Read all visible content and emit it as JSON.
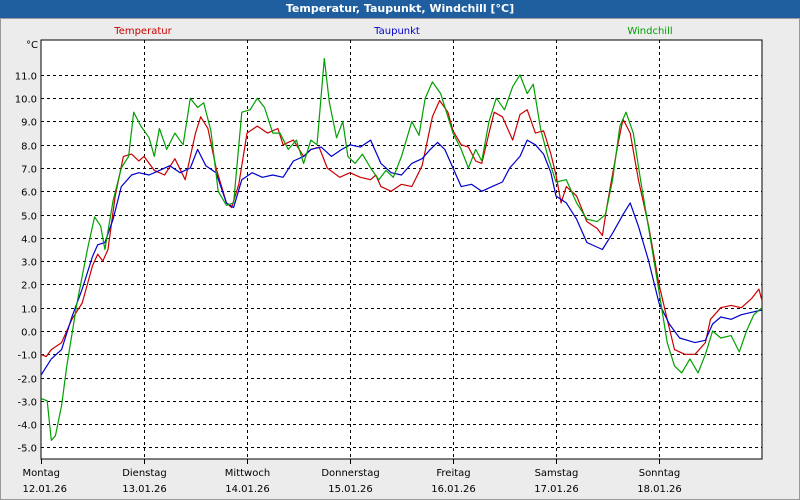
{
  "window": {
    "title": "Temperatur, Taupunkt, Windchill [°C]"
  },
  "chart_data": {
    "type": "line",
    "title": "Temperatur, Taupunkt, Windchill [°C]",
    "ylabel": "°C",
    "ylim": [
      -5.5,
      12.5
    ],
    "xlim": [
      0,
      7
    ],
    "y_ticks": [
      11.0,
      10.0,
      9.0,
      8.0,
      7.0,
      6.0,
      5.0,
      4.0,
      3.0,
      2.0,
      1.0,
      0.0,
      -1.0,
      -2.0,
      -3.0,
      -4.0,
      -5.0
    ],
    "y_tick_labels": [
      "11.0",
      "10.0",
      "9.0",
      "8.0",
      "7.0",
      "6.0",
      "5.0",
      "4.0",
      "3.0",
      "2.0",
      "1.0",
      "0.0",
      "-1.0",
      "-2.0",
      "-3.0",
      "-4.0",
      "-5.0"
    ],
    "x_ticks": [
      {
        "day": "Montag",
        "date": "12.01.26",
        "x": 0
      },
      {
        "day": "Dienstag",
        "date": "13.01.26",
        "x": 1
      },
      {
        "day": "Mittwoch",
        "date": "14.01.26",
        "x": 2
      },
      {
        "day": "Donnerstag",
        "date": "15.01.26",
        "x": 3
      },
      {
        "day": "Freitag",
        "date": "16.01.26",
        "x": 4
      },
      {
        "day": "Samstag",
        "date": "17.01.26",
        "x": 5
      },
      {
        "day": "Sonntag",
        "date": "18.01.26",
        "x": 6
      }
    ],
    "grid": true,
    "series": [
      {
        "name": "Temperatur",
        "color": "#cc0000",
        "points": [
          [
            0,
            -1.0
          ],
          [
            0.05,
            -1.1
          ],
          [
            0.1,
            -0.8
          ],
          [
            0.2,
            -0.5
          ],
          [
            0.3,
            0.5
          ],
          [
            0.4,
            1.2
          ],
          [
            0.5,
            2.8
          ],
          [
            0.55,
            3.3
          ],
          [
            0.6,
            3.0
          ],
          [
            0.65,
            3.5
          ],
          [
            0.72,
            5.8
          ],
          [
            0.8,
            7.5
          ],
          [
            0.88,
            7.6
          ],
          [
            0.95,
            7.3
          ],
          [
            1.0,
            7.5
          ],
          [
            1.1,
            6.9
          ],
          [
            1.2,
            6.7
          ],
          [
            1.3,
            7.4
          ],
          [
            1.4,
            6.5
          ],
          [
            1.5,
            8.5
          ],
          [
            1.55,
            9.2
          ],
          [
            1.62,
            8.7
          ],
          [
            1.7,
            7.0
          ],
          [
            1.8,
            5.5
          ],
          [
            1.85,
            5.3
          ],
          [
            1.92,
            6.3
          ],
          [
            2.0,
            8.5
          ],
          [
            2.1,
            8.8
          ],
          [
            2.2,
            8.5
          ],
          [
            2.3,
            8.7
          ],
          [
            2.35,
            8.0
          ],
          [
            2.45,
            8.2
          ],
          [
            2.55,
            7.5
          ],
          [
            2.62,
            7.8
          ],
          [
            2.7,
            7.9
          ],
          [
            2.78,
            7.0
          ],
          [
            2.9,
            6.6
          ],
          [
            3.0,
            6.8
          ],
          [
            3.1,
            6.6
          ],
          [
            3.2,
            6.5
          ],
          [
            3.25,
            6.7
          ],
          [
            3.3,
            6.2
          ],
          [
            3.4,
            6.0
          ],
          [
            3.5,
            6.3
          ],
          [
            3.6,
            6.2
          ],
          [
            3.7,
            7.1
          ],
          [
            3.8,
            9.2
          ],
          [
            3.87,
            9.9
          ],
          [
            3.95,
            9.4
          ],
          [
            4.0,
            8.6
          ],
          [
            4.08,
            8.0
          ],
          [
            4.15,
            7.9
          ],
          [
            4.22,
            7.3
          ],
          [
            4.28,
            7.2
          ],
          [
            4.35,
            8.5
          ],
          [
            4.4,
            9.4
          ],
          [
            4.48,
            9.2
          ],
          [
            4.58,
            8.2
          ],
          [
            4.65,
            9.3
          ],
          [
            4.72,
            9.5
          ],
          [
            4.8,
            8.5
          ],
          [
            4.88,
            8.6
          ],
          [
            4.95,
            7.6
          ],
          [
            5.0,
            6.7
          ],
          [
            5.05,
            5.5
          ],
          [
            5.1,
            6.2
          ],
          [
            5.2,
            5.8
          ],
          [
            5.3,
            4.7
          ],
          [
            5.4,
            4.4
          ],
          [
            5.45,
            4.1
          ],
          [
            5.5,
            5.5
          ],
          [
            5.6,
            8.0
          ],
          [
            5.65,
            9.1
          ],
          [
            5.72,
            8.5
          ],
          [
            5.8,
            6.5
          ],
          [
            5.9,
            4.5
          ],
          [
            6.0,
            2.0
          ],
          [
            6.08,
            0.5
          ],
          [
            6.15,
            -0.8
          ],
          [
            6.25,
            -1.0
          ],
          [
            6.35,
            -1.0
          ],
          [
            6.45,
            -0.5
          ],
          [
            6.5,
            0.5
          ],
          [
            6.6,
            1.0
          ],
          [
            6.7,
            1.1
          ],
          [
            6.8,
            1.0
          ],
          [
            6.9,
            1.4
          ],
          [
            6.97,
            1.8
          ],
          [
            7.0,
            1.3
          ]
        ]
      },
      {
        "name": "Taupunkt",
        "color": "#0000cc",
        "points": [
          [
            0,
            -1.9
          ],
          [
            0.1,
            -1.2
          ],
          [
            0.2,
            -0.8
          ],
          [
            0.3,
            0.6
          ],
          [
            0.4,
            1.8
          ],
          [
            0.5,
            3.2
          ],
          [
            0.55,
            3.7
          ],
          [
            0.62,
            3.8
          ],
          [
            0.7,
            4.8
          ],
          [
            0.78,
            6.2
          ],
          [
            0.88,
            6.7
          ],
          [
            0.95,
            6.8
          ],
          [
            1.05,
            6.7
          ],
          [
            1.15,
            6.9
          ],
          [
            1.25,
            7.1
          ],
          [
            1.35,
            6.8
          ],
          [
            1.45,
            7.0
          ],
          [
            1.52,
            7.8
          ],
          [
            1.6,
            7.1
          ],
          [
            1.7,
            6.8
          ],
          [
            1.8,
            5.5
          ],
          [
            1.87,
            5.3
          ],
          [
            1.95,
            6.5
          ],
          [
            2.05,
            6.8
          ],
          [
            2.15,
            6.6
          ],
          [
            2.25,
            6.7
          ],
          [
            2.35,
            6.6
          ],
          [
            2.45,
            7.3
          ],
          [
            2.55,
            7.5
          ],
          [
            2.62,
            7.8
          ],
          [
            2.72,
            7.9
          ],
          [
            2.82,
            7.5
          ],
          [
            2.92,
            7.8
          ],
          [
            3.0,
            8.0
          ],
          [
            3.1,
            7.9
          ],
          [
            3.2,
            8.2
          ],
          [
            3.3,
            7.2
          ],
          [
            3.4,
            6.8
          ],
          [
            3.5,
            6.7
          ],
          [
            3.6,
            7.2
          ],
          [
            3.7,
            7.4
          ],
          [
            3.78,
            7.8
          ],
          [
            3.85,
            8.1
          ],
          [
            3.92,
            7.8
          ],
          [
            4.0,
            7.0
          ],
          [
            4.08,
            6.2
          ],
          [
            4.18,
            6.3
          ],
          [
            4.28,
            6.0
          ],
          [
            4.38,
            6.2
          ],
          [
            4.48,
            6.4
          ],
          [
            4.55,
            7.0
          ],
          [
            4.65,
            7.5
          ],
          [
            4.72,
            8.2
          ],
          [
            4.8,
            8.0
          ],
          [
            4.88,
            7.6
          ],
          [
            4.95,
            6.8
          ],
          [
            5.0,
            5.8
          ],
          [
            5.1,
            5.5
          ],
          [
            5.2,
            4.8
          ],
          [
            5.3,
            3.8
          ],
          [
            5.45,
            3.5
          ],
          [
            5.55,
            4.2
          ],
          [
            5.65,
            5.0
          ],
          [
            5.72,
            5.5
          ],
          [
            5.8,
            4.5
          ],
          [
            5.9,
            3.0
          ],
          [
            6.0,
            1.2
          ],
          [
            6.1,
            0.3
          ],
          [
            6.2,
            -0.3
          ],
          [
            6.35,
            -0.5
          ],
          [
            6.45,
            -0.4
          ],
          [
            6.52,
            0.3
          ],
          [
            6.6,
            0.6
          ],
          [
            6.7,
            0.5
          ],
          [
            6.8,
            0.7
          ],
          [
            6.9,
            0.8
          ],
          [
            7.0,
            0.9
          ]
        ]
      },
      {
        "name": "Windchill",
        "color": "#00a000",
        "points": [
          [
            0,
            -2.9
          ],
          [
            0.06,
            -3.0
          ],
          [
            0.1,
            -4.7
          ],
          [
            0.14,
            -4.5
          ],
          [
            0.2,
            -3.2
          ],
          [
            0.25,
            -1.5
          ],
          [
            0.35,
            1.2
          ],
          [
            0.45,
            3.5
          ],
          [
            0.52,
            4.9
          ],
          [
            0.58,
            4.5
          ],
          [
            0.62,
            3.5
          ],
          [
            0.7,
            5.6
          ],
          [
            0.78,
            7.0
          ],
          [
            0.85,
            7.5
          ],
          [
            0.9,
            9.4
          ],
          [
            0.97,
            8.8
          ],
          [
            1.05,
            8.3
          ],
          [
            1.1,
            7.5
          ],
          [
            1.15,
            8.7
          ],
          [
            1.22,
            7.8
          ],
          [
            1.3,
            8.5
          ],
          [
            1.38,
            8.0
          ],
          [
            1.45,
            10.0
          ],
          [
            1.52,
            9.6
          ],
          [
            1.58,
            9.8
          ],
          [
            1.65,
            8.6
          ],
          [
            1.72,
            6.0
          ],
          [
            1.8,
            5.4
          ],
          [
            1.87,
            5.5
          ],
          [
            1.95,
            9.4
          ],
          [
            2.03,
            9.5
          ],
          [
            2.1,
            10.0
          ],
          [
            2.17,
            9.6
          ],
          [
            2.25,
            8.5
          ],
          [
            2.32,
            8.5
          ],
          [
            2.4,
            7.8
          ],
          [
            2.48,
            8.2
          ],
          [
            2.55,
            7.2
          ],
          [
            2.62,
            8.2
          ],
          [
            2.68,
            8.0
          ],
          [
            2.75,
            11.7
          ],
          [
            2.8,
            9.8
          ],
          [
            2.87,
            8.3
          ],
          [
            2.93,
            9.0
          ],
          [
            2.98,
            7.5
          ],
          [
            3.05,
            7.2
          ],
          [
            3.12,
            7.6
          ],
          [
            3.2,
            7.0
          ],
          [
            3.28,
            6.5
          ],
          [
            3.35,
            6.9
          ],
          [
            3.42,
            6.6
          ],
          [
            3.5,
            7.5
          ],
          [
            3.6,
            9.0
          ],
          [
            3.67,
            8.4
          ],
          [
            3.73,
            10.0
          ],
          [
            3.8,
            10.7
          ],
          [
            3.88,
            10.2
          ],
          [
            3.95,
            9.2
          ],
          [
            4.0,
            8.5
          ],
          [
            4.08,
            7.8
          ],
          [
            4.15,
            7.0
          ],
          [
            4.22,
            7.8
          ],
          [
            4.28,
            7.3
          ],
          [
            4.35,
            9.0
          ],
          [
            4.42,
            10.0
          ],
          [
            4.5,
            9.5
          ],
          [
            4.58,
            10.5
          ],
          [
            4.65,
            11.0
          ],
          [
            4.72,
            10.2
          ],
          [
            4.78,
            10.6
          ],
          [
            4.85,
            8.7
          ],
          [
            4.92,
            7.5
          ],
          [
            5.0,
            6.4
          ],
          [
            5.1,
            6.5
          ],
          [
            5.2,
            5.5
          ],
          [
            5.3,
            4.8
          ],
          [
            5.4,
            4.7
          ],
          [
            5.48,
            5.0
          ],
          [
            5.55,
            6.5
          ],
          [
            5.62,
            8.8
          ],
          [
            5.68,
            9.4
          ],
          [
            5.75,
            8.5
          ],
          [
            5.82,
            6.5
          ],
          [
            5.9,
            4.4
          ],
          [
            6.0,
            1.7
          ],
          [
            6.08,
            -0.5
          ],
          [
            6.15,
            -1.5
          ],
          [
            6.22,
            -1.8
          ],
          [
            6.3,
            -1.2
          ],
          [
            6.38,
            -1.8
          ],
          [
            6.45,
            -1.0
          ],
          [
            6.52,
            0.0
          ],
          [
            6.6,
            -0.3
          ],
          [
            6.7,
            -0.2
          ],
          [
            6.78,
            -0.9
          ],
          [
            6.85,
            0.0
          ],
          [
            6.92,
            0.7
          ],
          [
            7.0,
            1.0
          ]
        ]
      }
    ]
  }
}
